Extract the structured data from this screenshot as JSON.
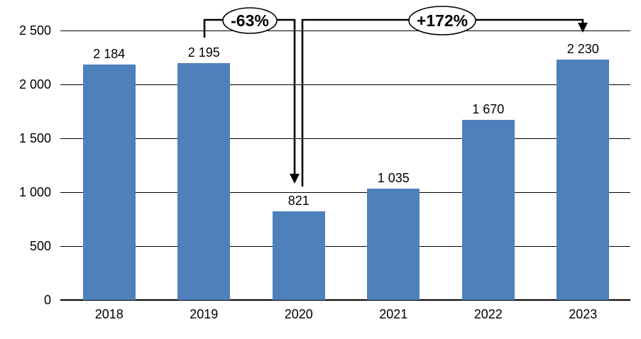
{
  "chart_data": {
    "type": "bar",
    "categories": [
      "2018",
      "2019",
      "2020",
      "2021",
      "2022",
      "2023"
    ],
    "values": [
      2184,
      2195,
      821,
      1035,
      1670,
      2230
    ],
    "value_labels": [
      "2 184",
      "2 195",
      "821",
      "1 035",
      "1 670",
      "2 230"
    ],
    "title": "",
    "xlabel": "",
    "ylabel": "",
    "ylim": [
      0,
      2500
    ],
    "ytick_step": 500,
    "ytick_labels": [
      "0",
      "500",
      "1 000",
      "1 500",
      "2 000",
      "2 500"
    ],
    "grid": true,
    "legend": false,
    "bar_color": "#4E80BC",
    "annotations": [
      {
        "label": "-63%",
        "from": "2019",
        "to": "2020",
        "shape": "ellipse-callout-with-arrow"
      },
      {
        "label": "+172%",
        "from": "2020",
        "to": "2023",
        "shape": "ellipse-callout-with-arrow"
      }
    ]
  }
}
